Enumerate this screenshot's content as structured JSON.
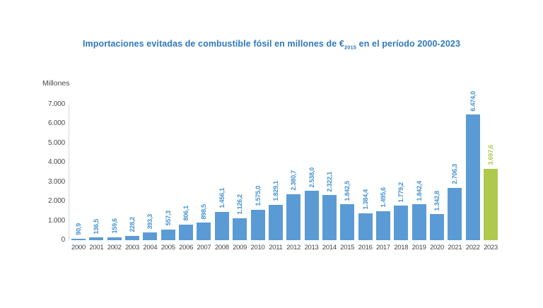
{
  "page": {
    "background": "#ffffff"
  },
  "title": {
    "prefix": "Importaciones evitadas de combustible fósil en millones de €",
    "subscript": "2015",
    "suffix": " en el período 2000-2023",
    "color": "#2f79be"
  },
  "chart_data": {
    "type": "bar",
    "title": "Importaciones evitadas de combustible fósil en millones de €2015 en el período 2000-2023",
    "xlabel": "",
    "ylabel": "Millones",
    "ylim": [
      0,
      7000
    ],
    "grid": false,
    "legend": null,
    "yticks": {
      "values": [
        0,
        1000,
        2000,
        3000,
        4000,
        5000,
        6000,
        7000
      ],
      "labels": [
        "0",
        "1.000",
        "2.000",
        "3.000",
        "4.000",
        "5.000",
        "6.000",
        "7.000"
      ]
    },
    "categories": [
      "2000",
      "2001",
      "2002",
      "2003",
      "2004",
      "2005",
      "2006",
      "2007",
      "2008",
      "2009",
      "2010",
      "2011",
      "2012",
      "2013",
      "2014",
      "2015",
      "2016",
      "2017",
      "2018",
      "2019",
      "2020",
      "2021",
      "2022",
      "2023"
    ],
    "values": [
      90.9,
      136.5,
      159.6,
      228.2,
      393.3,
      557.3,
      806.1,
      898.5,
      1456.1,
      1126.2,
      1575.0,
      1829.1,
      2380.7,
      2538.0,
      2322.1,
      1842.5,
      1384.4,
      1495.6,
      1779.2,
      1842.4,
      1342.8,
      2706.3,
      6474.0,
      3697.6
    ],
    "value_labels": [
      "90,9",
      "136,5",
      "159,6",
      "228,2",
      "393,3",
      "557,3",
      "806,1",
      "898,5",
      "1.456,1",
      "1.126,2",
      "1.575,0",
      "1.829,1",
      "2.380,7",
      "2.538,0",
      "2.322,1",
      "1.842,5",
      "1.384,4",
      "1.495,6",
      "1.779,2",
      "1.842,4",
      "1.342,8",
      "2.706,3",
      "6.474,0",
      "3.697,6"
    ],
    "highlight_index": 23,
    "colors": {
      "bar": "#5b9bd5",
      "bar_highlight": "#afc94c",
      "value_label": "#4593d0",
      "value_label_highlight": "#afc94c",
      "axis_text": "#4a4a4a",
      "axis_line": "#d9d9d9"
    }
  }
}
